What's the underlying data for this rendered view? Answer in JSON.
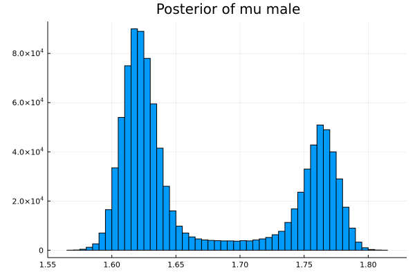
{
  "chart_data": {
    "type": "bar",
    "subtype": "histogram",
    "title": "Posterior of mu male",
    "xlabel": "",
    "ylabel": "",
    "xlim": [
      1.55,
      1.83
    ],
    "ylim": [
      -3000,
      93000
    ],
    "grid": true,
    "legend": "none",
    "bar_color": "#009AFA",
    "bin_width": 0.005,
    "bin_start": 1.565,
    "values": [
      20,
      100,
      400,
      1200,
      2600,
      7000,
      16500,
      33500,
      54000,
      75000,
      90000,
      89000,
      78000,
      59500,
      41500,
      26000,
      16000,
      9800,
      7000,
      5400,
      4600,
      4200,
      4000,
      3900,
      3800,
      3800,
      3700,
      3900,
      3800,
      4200,
      4600,
      5200,
      6300,
      7700,
      11300,
      16800,
      23600,
      33000,
      42800,
      50900,
      49000,
      40000,
      29000,
      17500,
      9000,
      3300,
      1000,
      300,
      80,
      20
    ],
    "x_ticks": [
      {
        "value": 1.55,
        "label": "1.55"
      },
      {
        "value": 1.6,
        "label": "1.60"
      },
      {
        "value": 1.65,
        "label": "1.65"
      },
      {
        "value": 1.7,
        "label": "1.70"
      },
      {
        "value": 1.75,
        "label": "1.75"
      },
      {
        "value": 1.8,
        "label": "1.80"
      }
    ],
    "y_ticks": [
      {
        "value": 0,
        "mantissa": "0",
        "exponent": ""
      },
      {
        "value": 20000,
        "mantissa": "2.0×10",
        "exponent": "4"
      },
      {
        "value": 40000,
        "mantissa": "4.0×10",
        "exponent": "4"
      },
      {
        "value": 60000,
        "mantissa": "6.0×10",
        "exponent": "4"
      },
      {
        "value": 80000,
        "mantissa": "8.0×10",
        "exponent": "4"
      }
    ]
  }
}
